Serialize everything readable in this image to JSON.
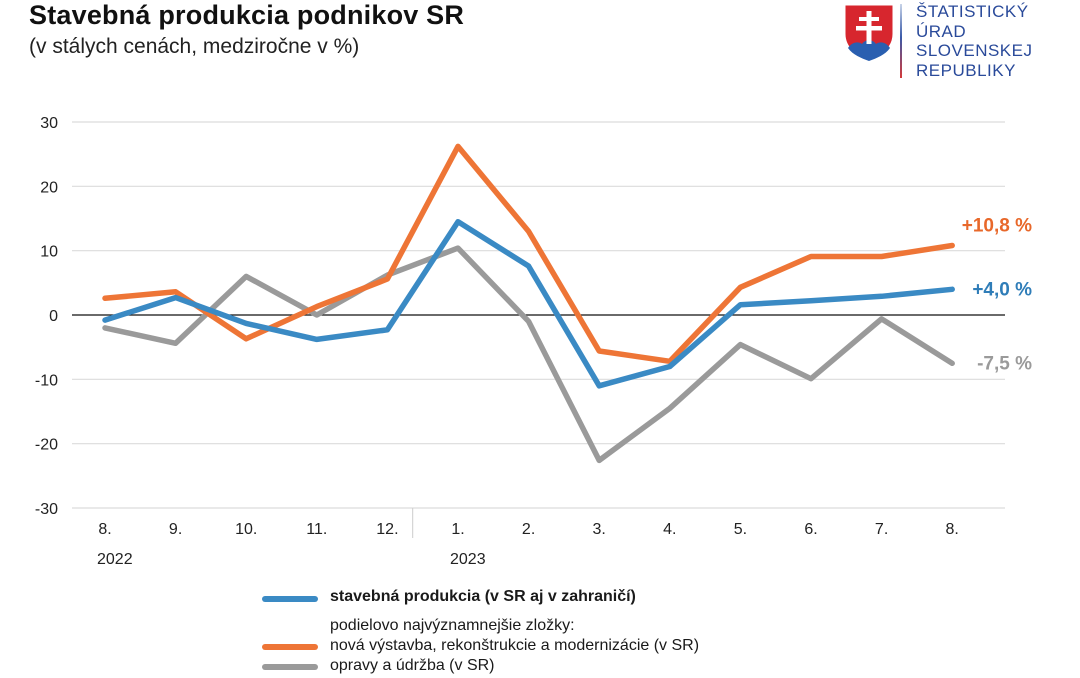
{
  "header": {
    "title": "Stavebná produkcia podnikov SR",
    "subtitle": "(v stálych cenách, medziročne v %)"
  },
  "logo": {
    "icon": "slovak-coat-of-arms-icon",
    "lines": [
      "ŠTATISTICKÝ",
      "ÚRAD",
      "SLOVENSKEJ",
      "REPUBLIKY"
    ],
    "text_color": "#2a4a9a"
  },
  "chart_data": {
    "type": "line",
    "title": "Stavebná produkcia podnikov SR",
    "subtitle": "(v stálych cenách, medziročne v %)",
    "xlabel": "",
    "ylabel": "",
    "categories": [
      "8.",
      "9.",
      "10.",
      "11.",
      "12.",
      "1.",
      "2.",
      "3.",
      "4.",
      "5.",
      "6.",
      "7.",
      "8."
    ],
    "year_labels": [
      {
        "label": "2022",
        "start_index": 0
      },
      {
        "label": "2023",
        "start_index": 5
      }
    ],
    "yticks": [
      30,
      20,
      10,
      0,
      -10,
      -20,
      -30
    ],
    "ylim": [
      -30,
      30
    ],
    "grid": true,
    "series": [
      {
        "name": "stavebná produkcia (v SR aj v zahraničí)",
        "color": "#3a8ac4",
        "values": [
          -0.8,
          2.7,
          -1.3,
          -3.8,
          -2.3,
          14.5,
          7.6,
          -11.0,
          -8.0,
          1.6,
          2.2,
          2.9,
          4.0
        ],
        "end_label": "+4,0 %"
      },
      {
        "name": "nová výstavba, rekonštrukcie a modernizácie (v SR)",
        "color": "#ee7536",
        "values": [
          2.6,
          3.6,
          -3.7,
          1.3,
          5.6,
          26.2,
          13.0,
          -5.6,
          -7.2,
          4.3,
          9.1,
          9.1,
          10.8
        ],
        "end_label": "+10,8 %"
      },
      {
        "name": "opravy a údržba (v SR)",
        "color": "#9a9a9a",
        "values": [
          -2.0,
          -4.4,
          6.0,
          0.0,
          6.2,
          10.4,
          -1.0,
          -22.6,
          -14.5,
          -4.6,
          -9.9,
          -0.6,
          -7.5
        ],
        "end_label": "-7,5 %"
      }
    ],
    "legend": {
      "placement": "bottom",
      "main_entry": "stavebná produkcia (v SR aj v zahraničí)",
      "group_heading": "podielovo najvýznamnejšie zložky:",
      "entries": [
        "nová výstavba, rekonštrukcie a modernizácie (v SR)",
        "opravy a údržba (v SR)"
      ]
    }
  }
}
